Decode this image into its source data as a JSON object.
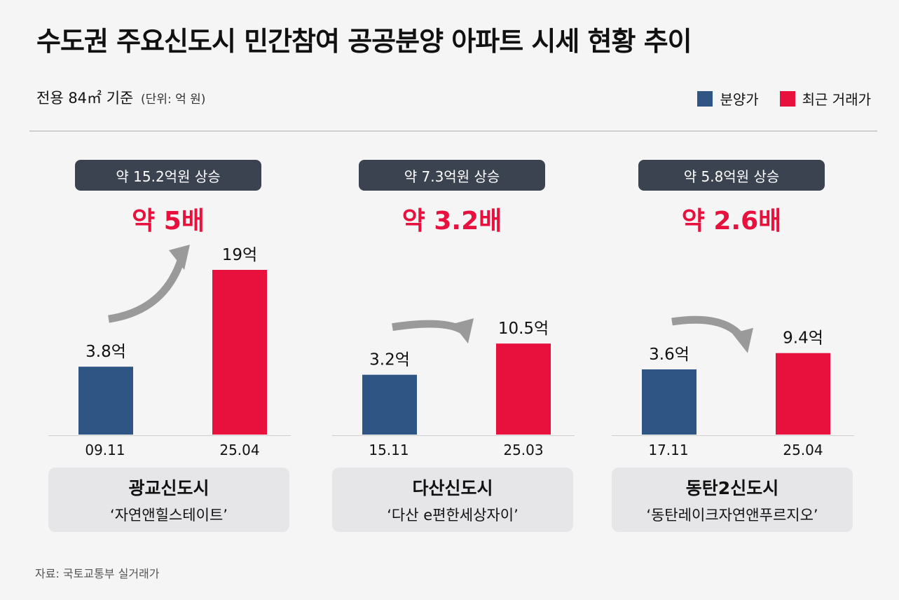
{
  "title": "수도권 주요신도시 민간참여 공공분양 아파트 시세 현황 추이",
  "subtitle": "전용 84㎡ 기준",
  "unit_note": "(단위: 억 원)",
  "legend": [
    {
      "label": "분양가",
      "color": "#2e5583"
    },
    {
      "label": "최근 거래가",
      "color": "#e8103c"
    }
  ],
  "colors": {
    "sale": "#2e5583",
    "recent": "#e8103c",
    "badge": "#3c4350",
    "arrow": "#9a9a9a"
  },
  "source": "자료: 국토교통부 실거래가",
  "panels": [
    {
      "city": "광교신도시",
      "complex": "‘자연앤힐스테이트’",
      "increase": "약 15.2억원 상승",
      "multiple": "약 5배",
      "value_labels": [
        "3.8억",
        "19억"
      ],
      "dates": [
        "09.11",
        "25.04"
      ]
    },
    {
      "city": "다산신도시",
      "complex": "‘다산 e편한세상자이’",
      "increase": "약 7.3억원 상승",
      "multiple": "약 3.2배",
      "value_labels": [
        "3.2억",
        "10.5억"
      ],
      "dates": [
        "15.11",
        "25.03"
      ]
    },
    {
      "city": "동탄2신도시",
      "complex": "‘동탄레이크자연앤푸르지오’",
      "increase": "약 5.8억원 상승",
      "multiple": "약 2.6배",
      "value_labels": [
        "3.6억",
        "9.4억"
      ],
      "dates": [
        "17.11",
        "25.04"
      ]
    }
  ],
  "chart_data": [
    {
      "type": "bar",
      "categories": [
        "09.11",
        "25.04"
      ],
      "series": [
        {
          "name": "분양가",
          "values": [
            3.8,
            null
          ]
        },
        {
          "name": "최근 거래가",
          "values": [
            null,
            19
          ]
        }
      ],
      "xlabel": "광교신도시",
      "ylabel": ""
    },
    {
      "type": "bar",
      "categories": [
        "15.11",
        "25.03"
      ],
      "series": [
        {
          "name": "분양가",
          "values": [
            3.2,
            null
          ]
        },
        {
          "name": "최근 거래가",
          "values": [
            null,
            10.5
          ]
        }
      ],
      "xlabel": "다산신도시",
      "ylabel": ""
    },
    {
      "type": "bar",
      "categories": [
        "17.11",
        "25.04"
      ],
      "series": [
        {
          "name": "분양가",
          "values": [
            3.6,
            null
          ]
        },
        {
          "name": "최근 거래가",
          "values": [
            null,
            9.4
          ]
        }
      ],
      "xlabel": "동탄2신도시",
      "ylabel": ""
    }
  ]
}
